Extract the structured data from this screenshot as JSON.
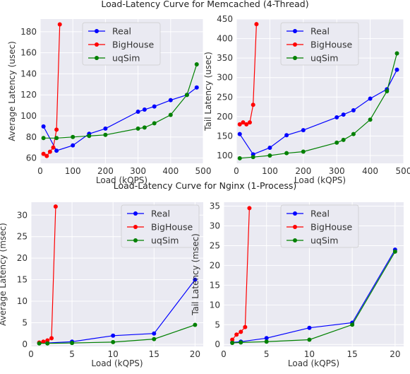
{
  "figure": {
    "titles": [
      "Load-Latency Curve for Memcached (4-Thread)",
      "Load-Latency Curve for Nginx (1-Process)"
    ]
  },
  "colors": {
    "Real": "#0000ff",
    "BigHouse": "#ff0000",
    "uqSim": "#008000",
    "panel": "#eaeaf2",
    "grid": "#ffffff"
  },
  "chart_data": [
    {
      "type": "line",
      "title": "",
      "xlabel": "Load (kQPS)",
      "ylabel": "Average Latency (usec)",
      "xlim": [
        0,
        500
      ],
      "ylim": [
        55,
        192
      ],
      "xticks": [
        0,
        100,
        200,
        300,
        400,
        500
      ],
      "yticks": [
        60,
        80,
        100,
        120,
        140,
        160,
        180
      ],
      "legend": "top-center",
      "grid": true,
      "series": [
        {
          "name": "Real",
          "x": [
            10,
            50,
            100,
            150,
            200,
            300,
            320,
            350,
            400,
            450,
            480
          ],
          "y": [
            90,
            67,
            72,
            83,
            88,
            104,
            106,
            109,
            115,
            120,
            127
          ]
        },
        {
          "name": "BigHouse",
          "x": [
            10,
            20,
            30,
            40,
            50,
            60
          ],
          "y": [
            64,
            62,
            66,
            70,
            87,
            187
          ]
        },
        {
          "name": "uqSim",
          "x": [
            10,
            50,
            100,
            150,
            200,
            300,
            320,
            350,
            400,
            450,
            480
          ],
          "y": [
            79,
            79,
            80,
            81,
            82,
            88,
            89,
            93,
            101,
            120,
            149
          ]
        }
      ]
    },
    {
      "type": "line",
      "title": "",
      "xlabel": "Load (kQPS)",
      "ylabel": "Tail Latency (usec)",
      "xlim": [
        0,
        500
      ],
      "ylim": [
        80,
        450
      ],
      "xticks": [
        0,
        100,
        200,
        300,
        400,
        500
      ],
      "yticks": [
        100,
        150,
        200,
        250,
        300,
        350,
        400,
        450
      ],
      "legend": "top-center",
      "grid": true,
      "series": [
        {
          "name": "Real",
          "x": [
            10,
            50,
            100,
            150,
            200,
            300,
            320,
            350,
            400,
            450,
            480
          ],
          "y": [
            155,
            103,
            120,
            152,
            165,
            198,
            205,
            216,
            246,
            270,
            320
          ]
        },
        {
          "name": "BigHouse",
          "x": [
            10,
            20,
            30,
            40,
            50,
            60
          ],
          "y": [
            180,
            185,
            180,
            185,
            230,
            437
          ]
        },
        {
          "name": "uqSim",
          "x": [
            10,
            50,
            100,
            150,
            200,
            300,
            320,
            350,
            400,
            450,
            480
          ],
          "y": [
            93,
            96,
            100,
            106,
            110,
            133,
            140,
            155,
            192,
            265,
            362
          ]
        }
      ]
    },
    {
      "type": "line",
      "title": "",
      "xlabel": "Load (kQPS)",
      "ylabel": "Average Latency (msec)",
      "xlim": [
        0,
        21
      ],
      "ylim": [
        -0.5,
        33
      ],
      "xticks": [
        0,
        5,
        10,
        15,
        20
      ],
      "yticks": [
        0,
        5,
        10,
        15,
        20,
        25,
        30
      ],
      "legend": "top-right",
      "grid": true,
      "series": [
        {
          "name": "Real",
          "x": [
            1,
            2,
            5,
            10,
            15,
            20
          ],
          "y": [
            0.3,
            0.3,
            0.6,
            2.0,
            2.5,
            15.0
          ]
        },
        {
          "name": "BigHouse",
          "x": [
            1,
            1.5,
            2,
            2.5,
            3
          ],
          "y": [
            0.4,
            0.6,
            0.9,
            1.4,
            32.0
          ]
        },
        {
          "name": "uqSim",
          "x": [
            1,
            2,
            5,
            10,
            15,
            20
          ],
          "y": [
            0.2,
            0.2,
            0.3,
            0.5,
            1.2,
            4.5
          ]
        }
      ]
    },
    {
      "type": "line",
      "title": "",
      "xlabel": "Load (kQPS)",
      "ylabel": "Tail Latency (msec)",
      "xlim": [
        0,
        21
      ],
      "ylim": [
        -0.5,
        36
      ],
      "xticks": [
        0,
        5,
        10,
        15,
        20
      ],
      "yticks": [
        0,
        5,
        10,
        15,
        20,
        25,
        30,
        35
      ],
      "legend": "top-center",
      "grid": true,
      "series": [
        {
          "name": "Real",
          "x": [
            1,
            2,
            5,
            10,
            15,
            20
          ],
          "y": [
            0.5,
            0.7,
            1.6,
            4.2,
            5.5,
            24.0
          ]
        },
        {
          "name": "BigHouse",
          "x": [
            1,
            1.5,
            2,
            2.5,
            3
          ],
          "y": [
            1.2,
            2.5,
            3.2,
            4.4,
            34.5
          ]
        },
        {
          "name": "uqSim",
          "x": [
            1,
            2,
            5,
            10,
            15,
            20
          ],
          "y": [
            0.4,
            0.5,
            0.7,
            1.2,
            5.0,
            23.5
          ]
        }
      ]
    }
  ]
}
